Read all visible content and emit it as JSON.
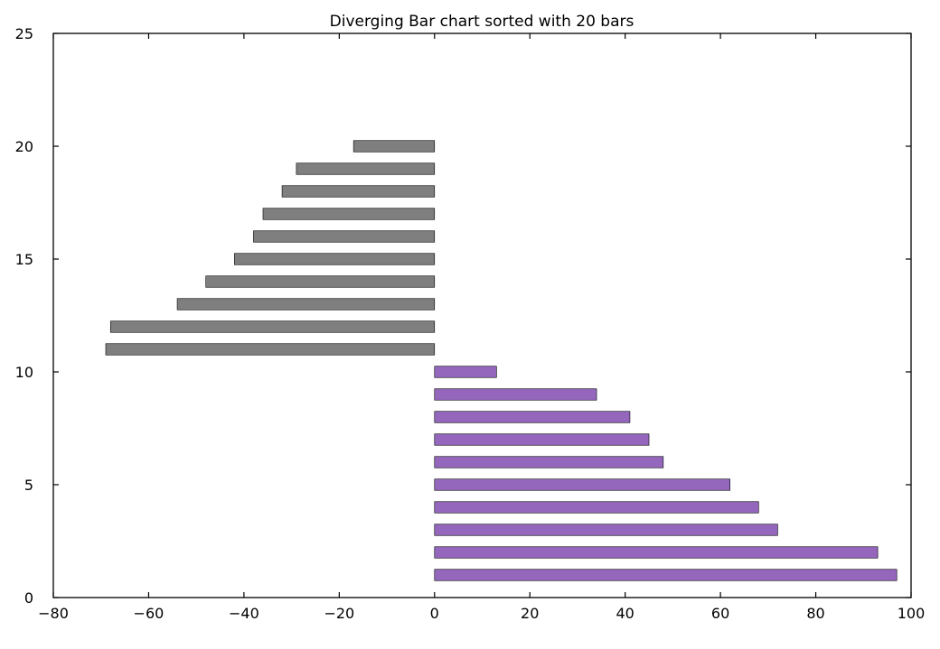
{
  "chart_data": {
    "type": "bar",
    "orientation": "horizontal",
    "title": "Diverging Bar chart sorted with 20 bars",
    "xlabel": "",
    "ylabel": "",
    "xlim": [
      -80,
      100
    ],
    "ylim": [
      0,
      25
    ],
    "xticks": [
      -80,
      -60,
      -40,
      -20,
      0,
      20,
      40,
      60,
      80,
      100
    ],
    "yticks": [
      0,
      5,
      10,
      15,
      20,
      25
    ],
    "xtick_labels": [
      "−80",
      "−60",
      "−40",
      "−20",
      "0",
      "20",
      "40",
      "60",
      "80",
      "100"
    ],
    "ytick_labels": [
      "0",
      "5",
      "10",
      "15",
      "20",
      "25"
    ],
    "grid": false,
    "colors": {
      "positive": "#9467bd",
      "negative": "#7f7f7f",
      "edge": "#000000"
    },
    "bars": [
      {
        "y": 1,
        "value": 97
      },
      {
        "y": 2,
        "value": 93
      },
      {
        "y": 3,
        "value": 72
      },
      {
        "y": 4,
        "value": 68
      },
      {
        "y": 5,
        "value": 62
      },
      {
        "y": 6,
        "value": 48
      },
      {
        "y": 7,
        "value": 45
      },
      {
        "y": 8,
        "value": 41
      },
      {
        "y": 9,
        "value": 34
      },
      {
        "y": 10,
        "value": 13
      },
      {
        "y": 11,
        "value": -69
      },
      {
        "y": 12,
        "value": -68
      },
      {
        "y": 13,
        "value": -54
      },
      {
        "y": 14,
        "value": -48
      },
      {
        "y": 15,
        "value": -42
      },
      {
        "y": 16,
        "value": -38
      },
      {
        "y": 17,
        "value": -36
      },
      {
        "y": 18,
        "value": -32
      },
      {
        "y": 19,
        "value": -29
      },
      {
        "y": 20,
        "value": -17
      }
    ]
  }
}
